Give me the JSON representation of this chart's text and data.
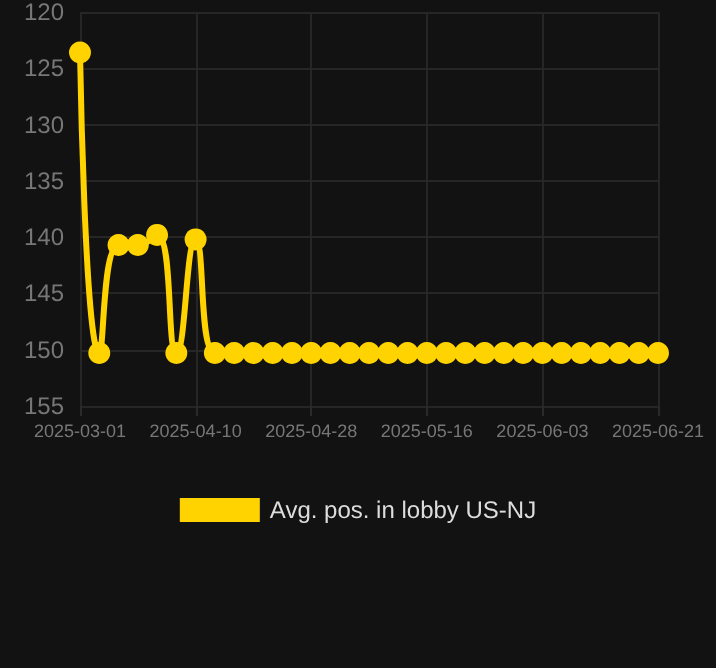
{
  "chart_data": {
    "type": "line",
    "categories": [
      "2025-03-01",
      null,
      null,
      null,
      null,
      null,
      "2025-04-10",
      null,
      null,
      null,
      null,
      null,
      "2025-04-28",
      null,
      null,
      null,
      null,
      null,
      "2025-05-16",
      null,
      null,
      null,
      null,
      null,
      "2025-06-03",
      null,
      null,
      null,
      null,
      null,
      "2025-06-21"
    ],
    "series": [
      {
        "name": "Avg. pos. in lobby US-NJ",
        "color": "#ffd300",
        "values": [
          123.6,
          150.3,
          140.7,
          140.7,
          139.8,
          150.3,
          140.2,
          150.3,
          150.3,
          150.3,
          150.3,
          150.3,
          150.3,
          150.3,
          150.3,
          150.3,
          150.3,
          150.3,
          150.3,
          150.3,
          150.3,
          150.3,
          150.3,
          150.3,
          150.3,
          150.3,
          150.3,
          150.3,
          150.3,
          150.3,
          150.3
        ]
      }
    ],
    "ylim": [
      155,
      120
    ],
    "yticks": [
      120,
      125,
      130,
      135,
      140,
      145,
      150,
      155
    ],
    "grid": true,
    "legend": "bottom",
    "marker": "circle",
    "line_style": "solid"
  }
}
